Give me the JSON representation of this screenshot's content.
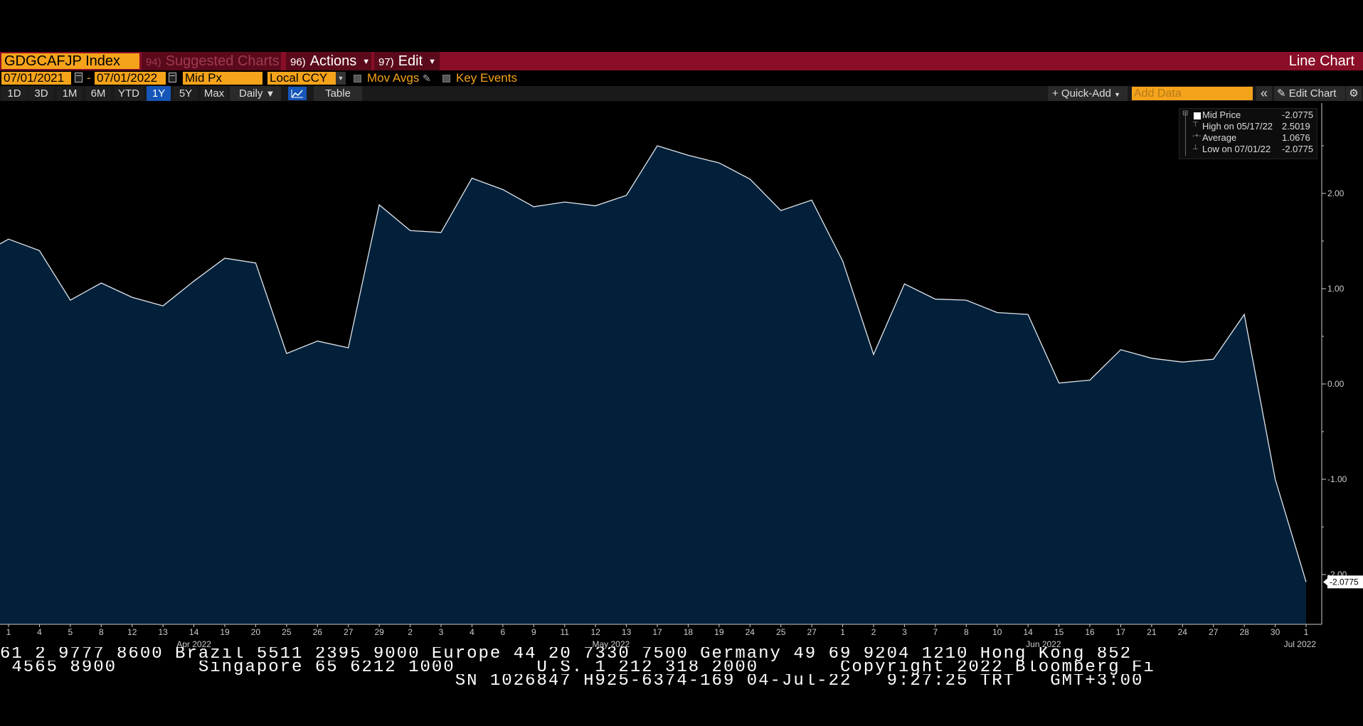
{
  "header": {
    "ticker": "GDGCAFJP Index",
    "suggested_num": "94)",
    "suggested_label": "Suggested Charts",
    "actions_num": "96)",
    "actions_label": "Actions",
    "edit_num": "97)",
    "edit_label": "Edit",
    "chart_type": "Line Chart"
  },
  "settings": {
    "start_date": "07/01/2021",
    "date_separator": "-",
    "end_date": "07/01/2022",
    "field": "Mid Px",
    "currency": "Local CCY",
    "mov_avgs": "Mov Avgs",
    "key_events": "Key Events"
  },
  "periods": [
    {
      "label": "1D",
      "active": false
    },
    {
      "label": "3D",
      "active": false
    },
    {
      "label": "1M",
      "active": false
    },
    {
      "label": "6M",
      "active": false
    },
    {
      "label": "YTD",
      "active": false
    },
    {
      "label": "1Y",
      "active": true
    },
    {
      "label": "5Y",
      "active": false
    },
    {
      "label": "Max",
      "active": false
    }
  ],
  "toolbar": {
    "frequency": "Daily",
    "table": "Table",
    "quick_add": "+ Quick-Add",
    "add_data_placeholder": "Add Data",
    "collapse": "«",
    "edit_chart": "Edit Chart"
  },
  "legend": {
    "series_name": "Mid Price",
    "series_value": "-2.0775",
    "high_label": "High on 05/17/22",
    "high_value": "2.5019",
    "avg_label": "Average",
    "avg_value": "1.0676",
    "low_label": "Low on 07/01/22",
    "low_value": "-2.0775"
  },
  "chart_data": {
    "type": "area",
    "series": [
      {
        "name": "Mid Price",
        "values": [
          1.52,
          1.4,
          0.88,
          1.06,
          0.91,
          0.82,
          1.08,
          1.32,
          1.27,
          0.32,
          0.45,
          0.38,
          1.88,
          1.61,
          1.59,
          2.16,
          2.04,
          1.86,
          1.91,
          1.87,
          1.98,
          2.5,
          2.4,
          2.32,
          2.15,
          1.82,
          1.93,
          1.29,
          0.31,
          1.05,
          0.89,
          0.88,
          0.75,
          0.73,
          0.01,
          0.04,
          0.36,
          0.27,
          0.23,
          0.26,
          0.73,
          -1.0,
          -2.0775
        ]
      }
    ],
    "x_tick_labels": [
      "1",
      "4",
      "5",
      "8",
      "12",
      "13",
      "14",
      "19",
      "20",
      "25",
      "26",
      "27",
      "29",
      "2",
      "3",
      "4",
      "6",
      "9",
      "11",
      "12",
      "13",
      "17",
      "18",
      "19",
      "24",
      "25",
      "27",
      "1",
      "2",
      "3",
      "7",
      "8",
      "10",
      "14",
      "15",
      "16",
      "17",
      "21",
      "24",
      "27",
      "28",
      "30",
      "1"
    ],
    "x_month_labels": [
      {
        "label": "Apr 2022",
        "index": 6
      },
      {
        "label": "May 2022",
        "index": 19.5
      },
      {
        "label": "Jun 2022",
        "index": 33.5
      },
      {
        "label": "Jul 2022",
        "index": 41.8
      }
    ],
    "y_ticks": [
      "2.00",
      "1.00",
      "0.00",
      "-1.00",
      "-2.00"
    ],
    "y_tick_values": [
      2,
      1,
      0,
      -1,
      -2
    ],
    "ylim": [
      -2.5,
      2.85
    ],
    "last_value_label": "-2.0775",
    "last_value": -2.0775,
    "colors": {
      "fill": "#03203a",
      "line": "#dfe6ee",
      "axis": "#cccccc"
    }
  },
  "ticker_tape": {
    "line1": "61 2 9777 8600 Brazil 5511 2395 9000 Europe 44 20 7330 7500 Germany 49 69 9204 1210 Hong Kong 852",
    "line2": " 4565 8900       Singapore 65 6212 1000       U.S. 1 212 318 2000       Copyright 2022 Bloomberg Fi",
    "line3": "                                       SN 1026847 H925-6374-169 04-Jul-22   9:27:25 TRT   GMT+3:00"
  }
}
